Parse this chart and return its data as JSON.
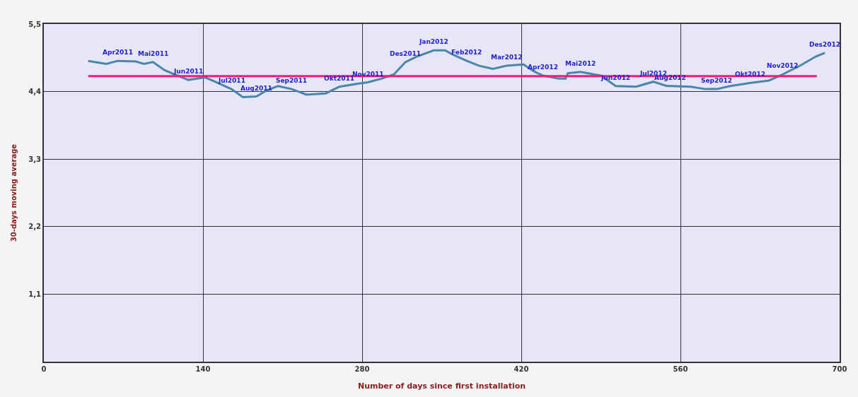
{
  "chart_data": {
    "type": "line",
    "xlabel": "Number of days since first installation",
    "ylabel": "30-days moving average",
    "xlim": [
      0,
      700
    ],
    "xticks": [
      0,
      140,
      280,
      420,
      560,
      700
    ],
    "ylim": [
      0,
      5.5
    ],
    "yticks": [
      {
        "value": 1.1,
        "label": "1,1"
      },
      {
        "value": 2.2,
        "label": "2,2"
      },
      {
        "value": 3.3,
        "label": "3,3"
      },
      {
        "value": 4.4,
        "label": "4,4"
      },
      {
        "value": 5.5,
        "label": "5,5"
      }
    ],
    "grid": true,
    "marker": "none",
    "line_style": "solid",
    "series": [
      {
        "color": "#4a86a8",
        "x": [
          39,
          55,
          65,
          81,
          88,
          96,
          106,
          115,
          127,
          142,
          152,
          165,
          175,
          187,
          196,
          206,
          218,
          231,
          248,
          260,
          277,
          285,
          297,
          308,
          318,
          328,
          343,
          353,
          360,
          372,
          383,
          395,
          407,
          422,
          430,
          439,
          453,
          459,
          461,
          472,
          490,
          503,
          521,
          536,
          548,
          551,
          569,
          582,
          592,
          604,
          621,
          638,
          650,
          666,
          679,
          687
        ],
        "values": [
          4.9,
          4.85,
          4.9,
          4.89,
          4.85,
          4.88,
          4.75,
          4.68,
          4.59,
          4.63,
          4.55,
          4.44,
          4.31,
          4.32,
          4.42,
          4.49,
          4.44,
          4.35,
          4.37,
          4.48,
          4.53,
          4.55,
          4.61,
          4.68,
          4.88,
          4.97,
          5.07,
          5.07,
          5.0,
          4.9,
          4.82,
          4.77,
          4.82,
          4.84,
          4.74,
          4.66,
          4.61,
          4.61,
          4.7,
          4.72,
          4.66,
          4.49,
          4.48,
          4.56,
          4.49,
          4.49,
          4.48,
          4.44,
          4.44,
          4.49,
          4.54,
          4.58,
          4.68,
          4.83,
          4.97,
          5.03
        ]
      },
      {
        "color": "#e8207a",
        "x": [
          39,
          680
        ],
        "values": [
          4.65,
          4.65
        ]
      }
    ],
    "annotations": [
      {
        "text": "Apr2011",
        "x": 65,
        "y": 4.9
      },
      {
        "text": "Mai2011",
        "x": 96,
        "y": 4.88
      },
      {
        "text": "Jun2011",
        "x": 127,
        "y": 4.59
      },
      {
        "text": "Jul2011",
        "x": 165,
        "y": 4.44
      },
      {
        "text": "Aug2011",
        "x": 187,
        "y": 4.32
      },
      {
        "text": "Sep2011",
        "x": 218,
        "y": 4.44
      },
      {
        "text": "Okt2011",
        "x": 260,
        "y": 4.48
      },
      {
        "text": "Nov2011",
        "x": 285,
        "y": 4.55
      },
      {
        "text": "Des2011",
        "x": 318,
        "y": 4.88
      },
      {
        "text": "Jan2012",
        "x": 343,
        "y": 5.07
      },
      {
        "text": "Feb2012",
        "x": 372,
        "y": 4.9
      },
      {
        "text": "Mar2012",
        "x": 407,
        "y": 4.82
      },
      {
        "text": "Apr2012",
        "x": 439,
        "y": 4.66
      },
      {
        "text": "Mai2012",
        "x": 472,
        "y": 4.72
      },
      {
        "text": "Jun2012",
        "x": 503,
        "y": 4.49
      },
      {
        "text": "Jul2012",
        "x": 536,
        "y": 4.56
      },
      {
        "text": "Aug2012",
        "x": 551,
        "y": 4.49
      },
      {
        "text": "Sep2012",
        "x": 592,
        "y": 4.44
      },
      {
        "text": "Okt2012",
        "x": 621,
        "y": 4.54
      },
      {
        "text": "Nov2012",
        "x": 650,
        "y": 4.68
      },
      {
        "text": "Des2012",
        "x": 687,
        "y": 5.03
      }
    ]
  }
}
